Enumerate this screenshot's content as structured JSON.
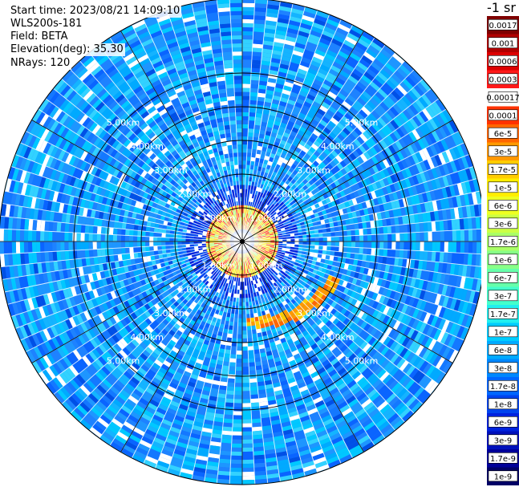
{
  "header": {
    "start_time": "Start time: 2023/08/21 14:09:10",
    "device": "WLS200s-181",
    "field": "Field: BETA",
    "elevation": "Elevation(deg): 35.30",
    "nrays": "NRays: 120"
  },
  "chart_data": {
    "type": "heatmap",
    "projection": "polar",
    "field": "BETA",
    "rays": 120,
    "elevation_deg": 35.3,
    "range_rings_km": [
      "1.00km",
      "2.00km",
      "3.00km",
      "4.00km",
      "5.00km"
    ],
    "max_range_km": 5.6,
    "colorbar": {
      "unit_label": "-1 sr",
      "levels": [
        "0.0017",
        "0.001",
        "0.0006",
        "0.0003",
        "0.00017",
        "0.0001",
        "6e-5",
        "3e-5",
        "1.7e-5",
        "1e-5",
        "6e-6",
        "3e-6",
        "1.7e-6",
        "1e-6",
        "6e-7",
        "3e-7",
        "1.7e-7",
        "1e-7",
        "6e-8",
        "3e-8",
        "1.7e-8",
        "1e-8",
        "6e-9",
        "3e-9",
        "1.7e-9",
        "1e-9"
      ],
      "colors": [
        "#7f0000",
        "#b00000",
        "#dc0000",
        "#ff1a1a",
        "#ffffff",
        "#ff3300",
        "#ff6600",
        "#ff9900",
        "#ffcc00",
        "#ffee00",
        "#eeff22",
        "#ccff44",
        "#aaff66",
        "#88ff88",
        "#66ffaa",
        "#44ffcc",
        "#22eeee",
        "#00ccff",
        "#00aaff",
        "#0088ff",
        "#0066ff",
        "#0044ee",
        "#0022dd",
        "#0011bb",
        "#000099",
        "#000066"
      ]
    },
    "features": [
      {
        "name": "near-range high backscatter ring",
        "range_km": [
          0.3,
          1.0
        ],
        "level": "1e-5"
      },
      {
        "name": "southeast arc",
        "range_km": [
          2.2,
          3.2
        ],
        "bearing_deg": [
          110,
          175
        ],
        "level": "3e-5"
      }
    ]
  }
}
